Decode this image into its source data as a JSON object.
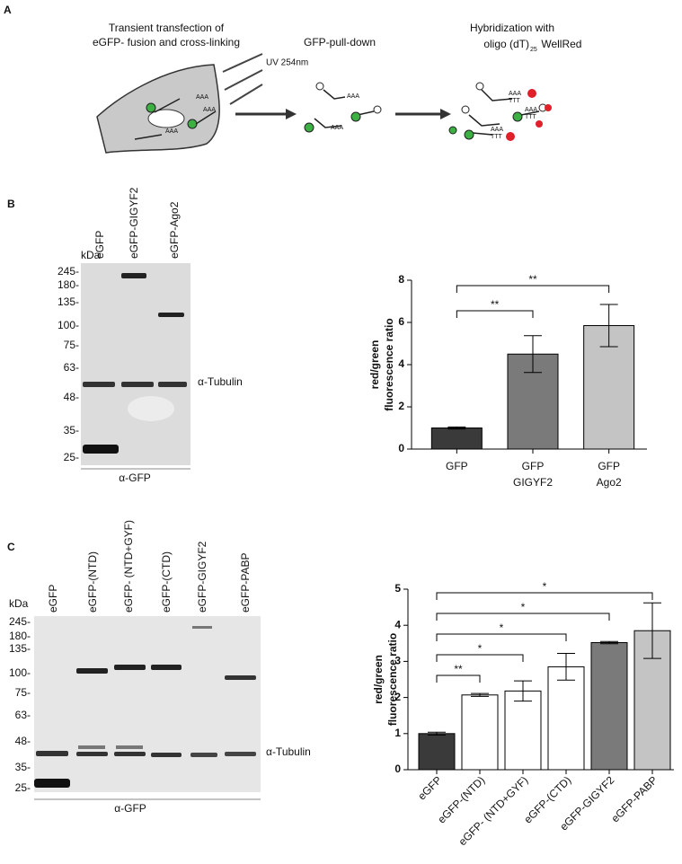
{
  "panel_a": {
    "label": "A",
    "step1": [
      "Transient transfection of",
      "eGFP- fusion and cross-linking"
    ],
    "uv": "UV 254nm",
    "step2": "GFP-pull-down",
    "step3": [
      "Hybridization with",
      "oligo (dT)",
      "25",
      " WellRed"
    ],
    "poly_a": "AAA",
    "poly_t": "TTT"
  },
  "blot_b": {
    "label": "B",
    "kda": "kDa",
    "lanes": [
      "eGFP",
      "eGFP-GIGYF2",
      "eGFP-Ago2"
    ],
    "markers": [
      "245-",
      "180-",
      "135-",
      "100-",
      "75-",
      "63-",
      "48-",
      "35-",
      "25-"
    ],
    "tubulin": "α-Tubulin",
    "antibody": "α-GFP"
  },
  "blot_c": {
    "label": "C",
    "kda": "kDa",
    "lanes": [
      "eGFP",
      "eGFP-(NTD)",
      "eGFP- (NTD+GYF)",
      "eGFP-(CTD)",
      "eGFP-GIGYF2",
      "eGFP-PABP"
    ],
    "markers": [
      "245-",
      "180-",
      "135-",
      "100-",
      "75-",
      "63-",
      "48-",
      "35-",
      "25-"
    ],
    "tubulin": "α-Tubulin",
    "antibody": "α-GFP"
  },
  "chart_data": [
    {
      "type": "bar",
      "y_label": [
        "red/green",
        "fluorescence ratio"
      ],
      "categories": [
        [
          "GFP"
        ],
        [
          "GFP",
          "GIGYF2"
        ],
        [
          "GFP",
          "Ago2"
        ]
      ],
      "values": [
        1.0,
        4.5,
        5.85
      ],
      "errors": [
        0.05,
        0.87,
        1.0
      ],
      "colors": [
        "#3a3a3a",
        "#7a7a7a",
        "#c4c4c4"
      ],
      "ylim": [
        0,
        8
      ],
      "yticks": [
        0,
        2,
        4,
        6,
        8
      ],
      "significance": [
        {
          "from": 0,
          "to": 1,
          "label": "**"
        },
        {
          "from": 0,
          "to": 2,
          "label": "**"
        }
      ]
    },
    {
      "type": "bar",
      "y_label": [
        "red/green",
        "fluorescence ratio"
      ],
      "categories": [
        "eGFP",
        "eGFP-(NTD)",
        "eGFP- (NTD+GYF)",
        "eGFP-(CTD)",
        "eGFP-GIGYF2",
        "eGFP-PABP"
      ],
      "values": [
        1.0,
        2.07,
        2.18,
        2.85,
        3.52,
        3.85
      ],
      "errors": [
        0.04,
        0.04,
        0.28,
        0.37,
        0.03,
        0.77
      ],
      "colors": [
        "#3a3a3a",
        "#ffffff",
        "#ffffff",
        "#ffffff",
        "#7a7a7a",
        "#c4c4c4"
      ],
      "ylim": [
        0,
        5
      ],
      "yticks": [
        0,
        1,
        2,
        3,
        4,
        5
      ],
      "significance": [
        {
          "from": 0,
          "to": 1,
          "label": "**"
        },
        {
          "from": 0,
          "to": 2,
          "label": "*"
        },
        {
          "from": 0,
          "to": 3,
          "label": "*"
        },
        {
          "from": 0,
          "to": 4,
          "label": "*"
        },
        {
          "from": 0,
          "to": 5,
          "label": "*"
        }
      ]
    }
  ]
}
